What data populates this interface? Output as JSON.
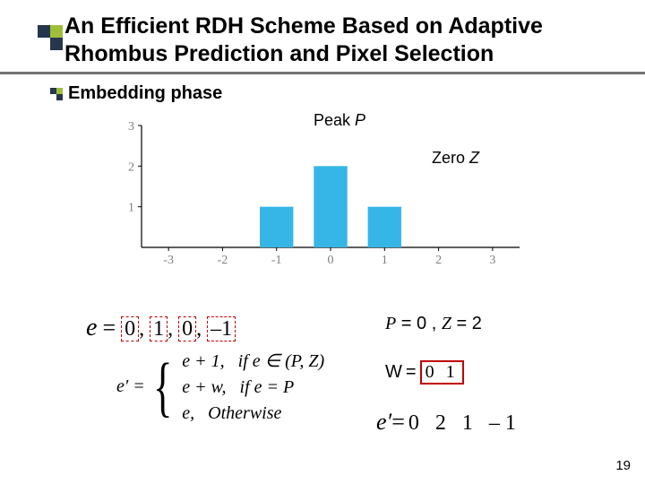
{
  "title": "An Efficient RDH Scheme Based on Adaptive Rhombus Prediction and Pixel Selection",
  "section_bullet": "Embedding phase",
  "chart": {
    "type": "bar",
    "x_ticks": [
      -3,
      -2,
      -1,
      0,
      1,
      2,
      3
    ],
    "y_ticks": [
      1,
      2,
      3
    ],
    "values": {
      "-3": 0,
      "-2": 0,
      "-1": 1,
      "0": 2,
      "1": 1,
      "2": 0,
      "3": 0
    },
    "ylim": [
      0,
      3
    ],
    "bar_color": "#35b6e6",
    "axis_color": "#000000",
    "tick_color": "#7f7f7f",
    "background_color": "#ffffff",
    "bar_width": 0.62,
    "peak_label": "Peak",
    "peak_symbol": "P",
    "zero_label": "Zero",
    "zero_symbol": "Z"
  },
  "e_values": [
    "0",
    "1",
    "0",
    "–1"
  ],
  "e_highlight": [
    true,
    true,
    true,
    true
  ],
  "pz": {
    "P_label": "P",
    "P_val": "0",
    "Z_label": "Z",
    "Z_val": "2"
  },
  "W": {
    "label": "W",
    "bits": "0 1"
  },
  "piecewise": {
    "lhs": "e′ =",
    "cases": [
      {
        "expr": "e + 1,",
        "cond": "if  e ∈ (P, Z)"
      },
      {
        "expr": "e + w,",
        "cond": "if  e = P"
      },
      {
        "expr": "e,",
        "cond": "Otherwise"
      }
    ]
  },
  "eprime_values": "0  2  1 –1",
  "page_number": "19",
  "colors": {
    "title_bullet_dark": "#26374d",
    "title_bullet_green": "#9fbf3b",
    "underline": "#737373",
    "highlight_border": "#c00000"
  }
}
